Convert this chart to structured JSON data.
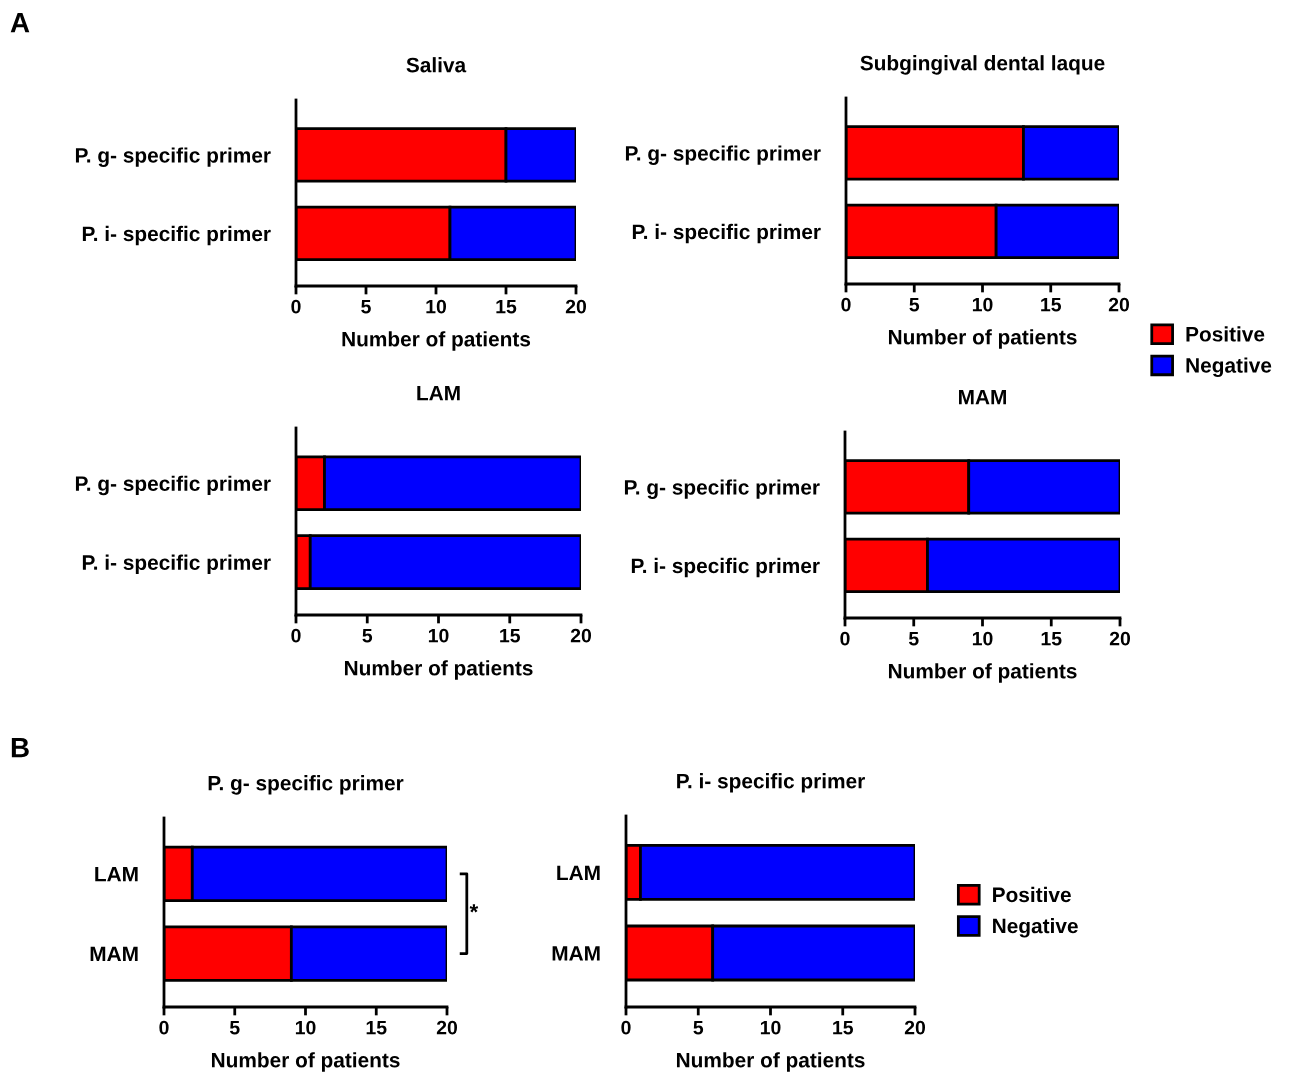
{
  "chart_data": [
    {
      "type": "bar",
      "orientation": "horizontal",
      "stacked": true,
      "title": "Saliva",
      "xlabel": "Number of patients",
      "categories": [
        "P. g- specific primer",
        "P. i- specific primer"
      ],
      "series": [
        {
          "color": "#ff0000",
          "values": [
            15,
            11
          ]
        },
        {
          "color": "#0000ff",
          "values": [
            5,
            9
          ]
        }
      ],
      "xlim": [
        0,
        20
      ],
      "xticks": [
        0,
        5,
        10,
        15,
        20
      ],
      "grid": false,
      "legend": false,
      "annotations": [
        "A"
      ]
    },
    {
      "type": "bar",
      "orientation": "horizontal",
      "stacked": true,
      "title": "Subgingival dental laque",
      "xlabel": "Number of patients",
      "categories": [
        "P. g- specific primer",
        "P. i- specific primer"
      ],
      "series": [
        {
          "name": "Positive",
          "color": "#ff0000",
          "values": [
            13,
            11
          ]
        },
        {
          "name": "Negative",
          "color": "#0000ff",
          "values": [
            7,
            9
          ]
        }
      ],
      "xlim": [
        0,
        20
      ],
      "xticks": [
        0,
        5,
        10,
        15,
        20
      ],
      "grid": false,
      "legend": "bottom right"
    },
    {
      "type": "bar",
      "orientation": "horizontal",
      "stacked": true,
      "title": "LAM",
      "xlabel": "Number of patients",
      "categories": [
        "P. g- specific primer",
        "P. i- specific primer"
      ],
      "series": [
        {
          "color": "#ff0000",
          "values": [
            2,
            1
          ]
        },
        {
          "color": "#0000ff",
          "values": [
            18,
            19
          ]
        }
      ],
      "xlim": [
        0,
        20
      ],
      "xticks": [
        0,
        5,
        10,
        15,
        20
      ],
      "grid": false,
      "legend": false
    },
    {
      "type": "bar",
      "orientation": "horizontal",
      "stacked": true,
      "title": "MAM",
      "xlabel": "Number of patients",
      "categories": [
        "P. g- specific primer",
        "P. i- specific primer"
      ],
      "series": [
        {
          "color": "#ff0000",
          "values": [
            9,
            6
          ]
        },
        {
          "color": "#0000ff",
          "values": [
            11,
            14
          ]
        }
      ],
      "xlim": [
        0,
        20
      ],
      "xticks": [
        0,
        5,
        10,
        15,
        20
      ],
      "grid": false,
      "legend": false
    },
    {
      "type": "bar",
      "orientation": "horizontal",
      "stacked": true,
      "title": "P. g- specific primer",
      "xlabel": "Number of patients",
      "categories": [
        "LAM",
        "MAM"
      ],
      "series": [
        {
          "color": "#ff0000",
          "values": [
            2,
            9
          ]
        },
        {
          "color": "#0000ff",
          "values": [
            18,
            11
          ]
        }
      ],
      "xlim": [
        0,
        20
      ],
      "xticks": [
        0,
        5,
        10,
        15,
        20
      ],
      "grid": false,
      "legend": false,
      "annotations": [
        "B",
        "*"
      ]
    },
    {
      "type": "bar",
      "orientation": "horizontal",
      "stacked": true,
      "title": "P. i- specific primer",
      "xlabel": "Number of patients",
      "categories": [
        "LAM",
        "MAM"
      ],
      "series": [
        {
          "name": "Positive",
          "color": "#ff0000",
          "values": [
            1,
            6
          ]
        },
        {
          "name": "Negative",
          "color": "#0000ff",
          "values": [
            19,
            14
          ]
        }
      ],
      "xlim": [
        0,
        20
      ],
      "xticks": [
        0,
        5,
        10,
        15,
        20
      ],
      "grid": false,
      "legend": "right"
    }
  ]
}
